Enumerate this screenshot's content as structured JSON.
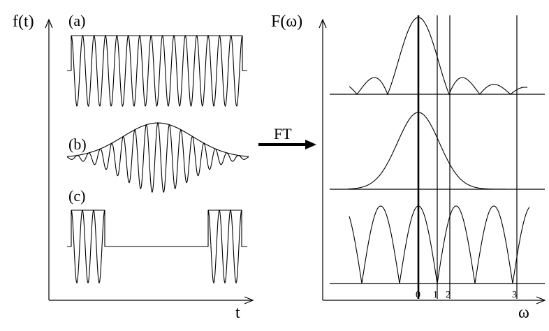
{
  "left_panel": {
    "y_axis_label": "f(t)",
    "x_axis_label": "t",
    "panel_a_label": "(a)",
    "panel_b_label": "(b)",
    "panel_c_label": "(c)"
  },
  "transform_arrow_label": "FT",
  "right_panel": {
    "y_axis_label": "F(ω)",
    "x_axis_label": "ω",
    "tick_labels": [
      "0",
      "1",
      "2",
      "3"
    ]
  }
}
